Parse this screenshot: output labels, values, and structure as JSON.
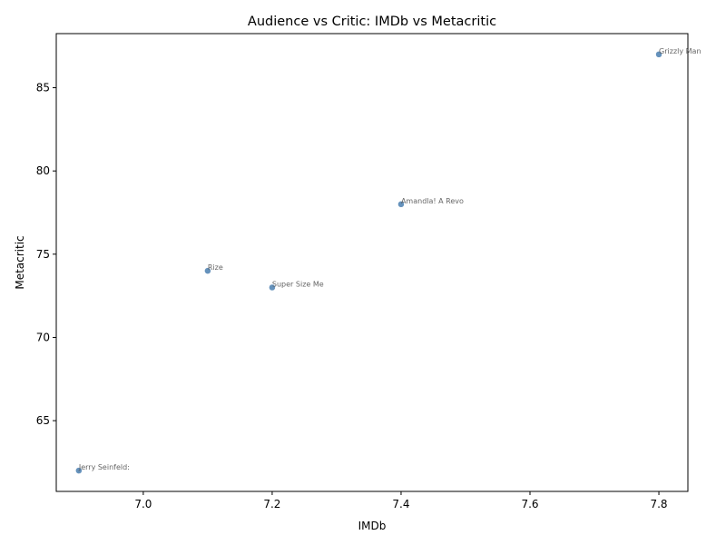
{
  "chart_data": {
    "type": "scatter",
    "title": "Audience vs Critic: IMDb vs Metacritic",
    "xlabel": "IMDb",
    "ylabel": "Metacritic",
    "xlim": [
      6.865,
      7.845
    ],
    "ylim": [
      60.75,
      88.25
    ],
    "xticks": [
      7.0,
      7.2,
      7.4,
      7.6,
      7.8
    ],
    "xtick_labels": [
      "7.0",
      "7.2",
      "7.4",
      "7.6",
      "7.8"
    ],
    "yticks": [
      65,
      70,
      75,
      80,
      85
    ],
    "ytick_labels": [
      "65",
      "70",
      "75",
      "80",
      "85"
    ],
    "grid": false,
    "marker_color": "#4a7fb0",
    "points": [
      {
        "x": 7.8,
        "y": 87,
        "label": "Grizzly Man"
      },
      {
        "x": 7.4,
        "y": 78,
        "label": "Amandla! A Revo"
      },
      {
        "x": 7.1,
        "y": 74,
        "label": "Rize"
      },
      {
        "x": 7.2,
        "y": 73,
        "label": "Super Size Me"
      },
      {
        "x": 6.9,
        "y": 62,
        "label": "Jerry Seinfeld:"
      }
    ]
  }
}
